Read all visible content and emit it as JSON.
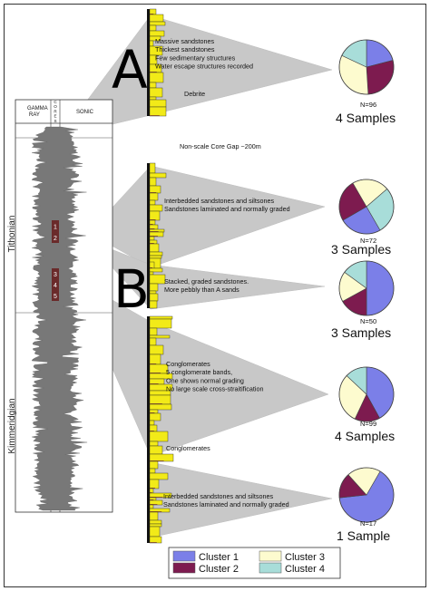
{
  "log_header": {
    "gamma_ray": "GAMMA\nRAY",
    "cores": "CORES",
    "sonic": "SONIC"
  },
  "stages": {
    "upper": "Tithonian",
    "lower": "Kimmeridgian"
  },
  "core_markers": [
    "1",
    "2",
    "3",
    "4",
    "5"
  ],
  "sections": {
    "a": "A",
    "b": "B"
  },
  "gap_text": "Non-scale Core Gap ~200m",
  "descriptions": [
    [
      "Massive sandstones",
      "Thickest sandstones",
      "Few sedimentary structures",
      "Water escape structures recorded"
    ],
    [
      "Debrite"
    ],
    [
      "Interbedded sandstones and siltsones",
      "Sandstones laminated and normally graded"
    ],
    [
      "Stacked, graded sandstones.",
      "More pebbly than A sands"
    ],
    [
      "Conglomerates",
      "5 conglomerate bands,",
      "One shows normal grading",
      "No large scale cross-straitification"
    ],
    [
      "Conglomerates"
    ],
    [
      "Interbedded sandstones and siltsones",
      "Sandstones laminated and normally graded"
    ]
  ],
  "colors": {
    "Cluster 1": "#7b7fe8",
    "Cluster 2": "#7d1b4f",
    "Cluster 3": "#fdfbcf",
    "Cluster 4": "#a8ddd9",
    "log_fill": "#787878",
    "fan": "#c8c8c8",
    "core": "#f2ea18"
  },
  "chart_data": [
    {
      "type": "pie",
      "n_label": "N=96",
      "samples_label": "4 Samples",
      "slices": [
        {
          "name": "Cluster 1",
          "value": 0.21
        },
        {
          "name": "Cluster 2",
          "value": 0.28
        },
        {
          "name": "Cluster 3",
          "value": 0.33
        },
        {
          "name": "Cluster 4",
          "value": 0.18
        }
      ]
    },
    {
      "type": "pie",
      "n_label": "N=72",
      "samples_label": "3 Samples",
      "slices": [
        {
          "name": "Cluster 1",
          "value": 0.25
        },
        {
          "name": "Cluster 2",
          "value": 0.25
        },
        {
          "name": "Cluster 3",
          "value": 0.22
        },
        {
          "name": "Cluster 4",
          "value": 0.28
        }
      ]
    },
    {
      "type": "pie",
      "n_label": "N=50",
      "samples_label": "3 Samples",
      "slices": [
        {
          "name": "Cluster 1",
          "value": 0.5
        },
        {
          "name": "Cluster 2",
          "value": 0.17
        },
        {
          "name": "Cluster 3",
          "value": 0.18
        },
        {
          "name": "Cluster 4",
          "value": 0.15
        }
      ]
    },
    {
      "type": "pie",
      "n_label": "N=99",
      "samples_label": "4 Samples",
      "slices": [
        {
          "name": "Cluster 1",
          "value": 0.42
        },
        {
          "name": "Cluster 2",
          "value": 0.15
        },
        {
          "name": "Cluster 3",
          "value": 0.3
        },
        {
          "name": "Cluster 4",
          "value": 0.13
        }
      ]
    },
    {
      "type": "pie",
      "n_label": "N=17",
      "samples_label": "1 Sample",
      "slices": [
        {
          "name": "Cluster 1",
          "value": 0.65
        },
        {
          "name": "Cluster 2",
          "value": 0.15
        },
        {
          "name": "Cluster 3",
          "value": 0.2
        }
      ]
    }
  ],
  "legend": [
    "Cluster 1",
    "Cluster 3",
    "Cluster 2",
    "Cluster 4"
  ]
}
